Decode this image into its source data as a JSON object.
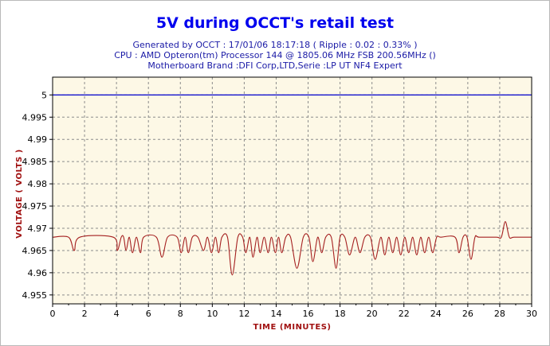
{
  "title": "5V during OCCT's retail test",
  "subtitle_lines": [
    "Generated by OCCT : 17/01/06 18:17:18 ( Ripple : 0.02 : 0.33% )",
    "CPU : AMD Opteron(tm) Processor 144    @ 1805.06 MHz FSB 200.56MHz ()",
    "Motherboard Brand :DFI Corp,LTD,Serie :LP UT NF4 Expert"
  ],
  "colors": {
    "title": "#0000ee",
    "subtitle": "#1a1aa6",
    "plot_background": "#fdf8e6",
    "grid": "#8c8c8c",
    "axis_title": "#a01010",
    "data_line": "#a52020",
    "reference_line": "#0000cc"
  },
  "chart_data": {
    "type": "line",
    "title": "5V during OCCT's retail test",
    "xlabel": "TIME (MINUTES)",
    "ylabel": "VOLTAGE ( VOLTS )",
    "xlim": [
      0,
      30
    ],
    "ylim": [
      4.953,
      5.004
    ],
    "x_ticks": [
      0,
      2,
      4,
      6,
      8,
      10,
      12,
      14,
      16,
      18,
      20,
      22,
      24,
      26,
      28,
      30
    ],
    "x_tick_labels": [
      "0",
      "2",
      "4",
      "6",
      "8",
      "10",
      "12",
      "14",
      "16",
      "18",
      "20",
      "22",
      "24",
      "26",
      "28",
      "30"
    ],
    "y_ticks": [
      4.955,
      4.96,
      4.965,
      4.97,
      4.975,
      4.98,
      4.985,
      4.99,
      4.995,
      5
    ],
    "y_tick_labels": [
      "4.955",
      "4.96",
      "4.965",
      "4.97",
      "4.975",
      "4.98",
      "4.985",
      "4.99",
      "4.995",
      "5"
    ],
    "grid": true,
    "series": [
      {
        "values_x": [
          0,
          1.0,
          1.35,
          1.7,
          3.8,
          4.05,
          4.3,
          4.45,
          4.6,
          4.8,
          5.0,
          5.25,
          5.5,
          5.7,
          6.5,
          6.85,
          7.2,
          7.8,
          8.05,
          8.3,
          8.5,
          8.75,
          9.1,
          9.45,
          9.7,
          9.95,
          10.2,
          10.4,
          10.6,
          10.95,
          11.25,
          11.6,
          11.9,
          12.1,
          12.35,
          12.55,
          12.8,
          13.0,
          13.25,
          13.5,
          13.7,
          13.95,
          14.15,
          14.35,
          14.6,
          14.9,
          15.3,
          15.7,
          16.05,
          16.3,
          16.6,
          16.85,
          17.1,
          17.45,
          17.75,
          18.0,
          18.3,
          18.6,
          18.95,
          19.25,
          19.55,
          19.9,
          20.2,
          20.55,
          20.8,
          21.05,
          21.3,
          21.55,
          21.8,
          22.05,
          22.3,
          22.55,
          22.8,
          23.05,
          23.3,
          23.55,
          23.8,
          24.05,
          24.3,
          25.2,
          25.45,
          25.7,
          25.95,
          26.2,
          26.45,
          26.7,
          27.8,
          28.1,
          28.35,
          28.6,
          28.9,
          30
        ],
        "values_y": [
          4.968,
          4.968,
          4.965,
          4.968,
          4.968,
          4.965,
          4.968,
          4.968,
          4.965,
          4.968,
          4.9645,
          4.968,
          4.9645,
          4.968,
          4.968,
          4.9635,
          4.968,
          4.968,
          4.9645,
          4.968,
          4.9645,
          4.968,
          4.968,
          4.965,
          4.968,
          4.9645,
          4.968,
          4.9645,
          4.968,
          4.968,
          4.9595,
          4.968,
          4.968,
          4.9645,
          4.968,
          4.9635,
          4.968,
          4.9645,
          4.968,
          4.9645,
          4.968,
          4.9645,
          4.968,
          4.9645,
          4.968,
          4.968,
          4.961,
          4.968,
          4.968,
          4.9625,
          4.968,
          4.9645,
          4.968,
          4.968,
          4.961,
          4.968,
          4.968,
          4.964,
          4.968,
          4.9645,
          4.968,
          4.968,
          4.963,
          4.968,
          4.964,
          4.968,
          4.9645,
          4.968,
          4.964,
          4.968,
          4.9645,
          4.968,
          4.964,
          4.968,
          4.9645,
          4.968,
          4.9645,
          4.968,
          4.968,
          4.968,
          4.9645,
          4.968,
          4.968,
          4.963,
          4.968,
          4.968,
          4.968,
          4.968,
          4.9715,
          4.968,
          4.968,
          4.968
        ]
      },
      {
        "values_x": [
          0,
          30
        ],
        "values_y": [
          5,
          5
        ]
      }
    ]
  }
}
